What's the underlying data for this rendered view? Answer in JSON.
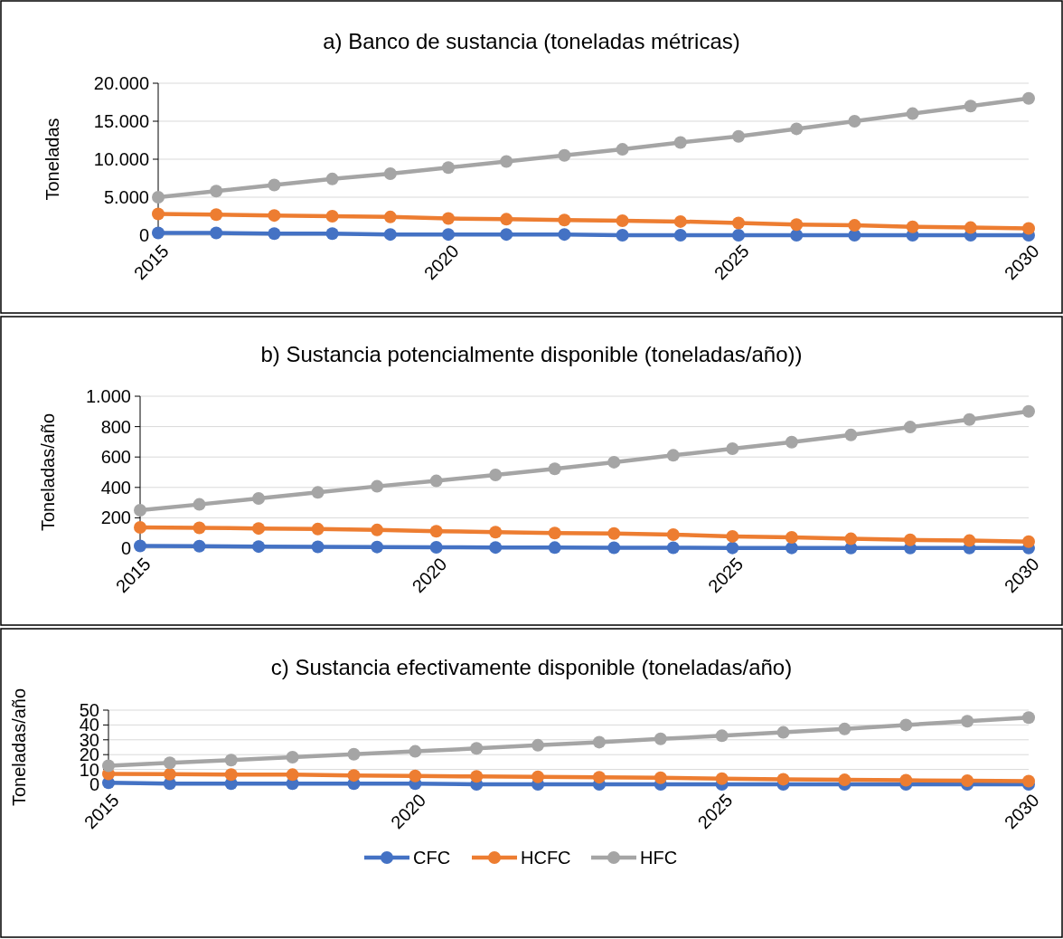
{
  "chart_data": [
    {
      "type": "line",
      "title": "a) Banco de sustancia (toneladas métricas)",
      "ylabel": "Toneladas",
      "x": [
        2015,
        2016,
        2017,
        2018,
        2019,
        2020,
        2021,
        2022,
        2023,
        2024,
        2025,
        2026,
        2027,
        2028,
        2029,
        2030
      ],
      "xlim": [
        2015,
        2030
      ],
      "xticks": [
        2015,
        2020,
        2025,
        2030
      ],
      "ylim": [
        0,
        20000
      ],
      "yticks": [
        {
          "value": 0,
          "label": "0"
        },
        {
          "value": 5000,
          "label": "5.000"
        },
        {
          "value": 10000,
          "label": "10.000"
        },
        {
          "value": 15000,
          "label": "15.000"
        },
        {
          "value": 20000,
          "label": "20.000"
        }
      ],
      "grid": "y",
      "legend": false,
      "marker": "circle",
      "series": [
        {
          "color": "#4472c4",
          "values": [
            300,
            300,
            200,
            200,
            100,
            100,
            100,
            100,
            0,
            0,
            0,
            0,
            0,
            0,
            0,
            0
          ]
        },
        {
          "color": "#ed7d31",
          "values": [
            2800,
            2700,
            2600,
            2500,
            2400,
            2200,
            2100,
            2000,
            1900,
            1800,
            1600,
            1400,
            1300,
            1100,
            1000,
            900
          ]
        },
        {
          "color": "#a5a5a5",
          "values": [
            5000,
            5800,
            6600,
            7400,
            8100,
            8900,
            9700,
            10500,
            11300,
            12200,
            13000,
            14000,
            15000,
            16000,
            17000,
            18000
          ]
        }
      ]
    },
    {
      "type": "line",
      "title": "b) Sustancia potencialmente disponible (toneladas/año))",
      "ylabel": "Toneladas/año",
      "x": [
        2015,
        2016,
        2017,
        2018,
        2019,
        2020,
        2021,
        2022,
        2023,
        2024,
        2025,
        2026,
        2027,
        2028,
        2029,
        2030
      ],
      "xlim": [
        2015,
        2030
      ],
      "xticks": [
        2015,
        2020,
        2025,
        2030
      ],
      "ylim": [
        0,
        1000
      ],
      "yticks": [
        0,
        200,
        400,
        600,
        800,
        {
          "value": 1000,
          "label": "1.000"
        }
      ],
      "grid": "y",
      "legend": false,
      "marker": "circle",
      "series": [
        {
          "color": "#4472c4",
          "values": [
            15,
            13,
            11,
            9,
            8,
            6,
            5,
            4,
            3,
            3,
            2,
            2,
            1,
            1,
            1,
            1
          ]
        },
        {
          "color": "#ed7d31",
          "values": [
            137,
            134,
            130,
            126,
            120,
            112,
            106,
            100,
            97,
            89,
            78,
            71,
            62,
            55,
            50,
            43
          ]
        },
        {
          "color": "#a5a5a5",
          "values": [
            250,
            288,
            327,
            367,
            407,
            443,
            482,
            522,
            566,
            611,
            655,
            698,
            745,
            797,
            847,
            900
          ]
        }
      ]
    },
    {
      "type": "line",
      "title": "c) Sustancia efectivamente disponible (toneladas/año)",
      "ylabel": "Toneladas/año",
      "x": [
        2015,
        2016,
        2017,
        2018,
        2019,
        2020,
        2021,
        2022,
        2023,
        2024,
        2025,
        2026,
        2027,
        2028,
        2029,
        2030
      ],
      "xlim": [
        2015,
        2030
      ],
      "xticks": [
        2015,
        2020,
        2025,
        2030
      ],
      "ylim": [
        0,
        50
      ],
      "yticks": [
        0,
        10,
        20,
        30,
        40,
        50
      ],
      "grid": "y",
      "legend": "bottom",
      "marker": "circle",
      "series": [
        {
          "name": "CFC",
          "color": "#4472c4",
          "values": [
            1,
            0.5,
            0.5,
            0.5,
            0.5,
            0.5,
            0,
            0,
            0,
            0,
            0,
            0,
            0,
            0,
            0,
            0
          ]
        },
        {
          "name": "HCFC",
          "color": "#ed7d31",
          "values": [
            7,
            6.8,
            6.6,
            6.5,
            6,
            5.6,
            5.3,
            5,
            4.8,
            4.4,
            3.8,
            3.4,
            3,
            2.7,
            2.4,
            2.1
          ]
        },
        {
          "name": "HFC",
          "color": "#a5a5a5",
          "values": [
            12.5,
            14.5,
            16.3,
            18.3,
            20.3,
            22.2,
            24.2,
            26.3,
            28.4,
            30.6,
            32.7,
            35,
            37.3,
            40,
            42.5,
            45
          ]
        }
      ]
    }
  ]
}
